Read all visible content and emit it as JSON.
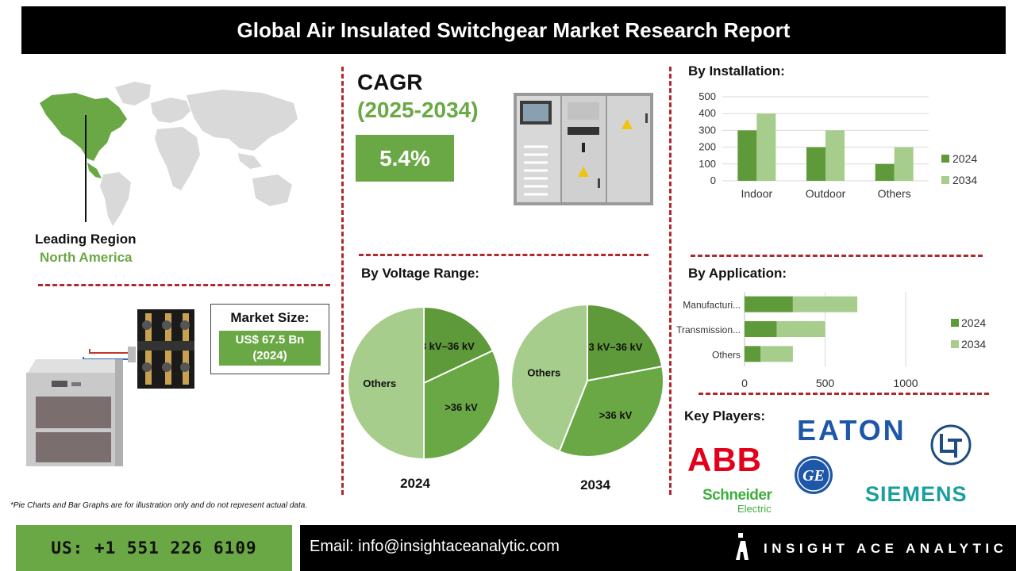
{
  "header": {
    "title": "Global Air Insulated Switchgear Market Research Report"
  },
  "region": {
    "label": "Leading Region",
    "value": "North America"
  },
  "cagr": {
    "title": "CAGR",
    "period": "(2025-2034)",
    "value": "5.4%"
  },
  "market_size": {
    "label": "Market Size:",
    "value": "US$ 67.5 Bn",
    "year": "(2024)"
  },
  "sections": {
    "installation": "By Installation:",
    "voltage": "By Voltage Range:",
    "application": "By Application:",
    "players": "Key Players:"
  },
  "note": "*Pie Charts and Bar Graphs are for illustration only and do not represent actual data.",
  "footer": {
    "phone": "US: +1 551 226 6109",
    "email": "Email: info@insightaceanalytic.com",
    "brand": "INSIGHT ACE ANALYTIC"
  },
  "players": {
    "abb": "ABB",
    "eaton": "EATON",
    "lt": "L&T",
    "ge": "GE",
    "schneider": "Schneider",
    "schneider_sub": "Electric",
    "siemens": "SIEMENS"
  },
  "colors": {
    "dark": "#5e9a3a",
    "light": "#a6cd8b",
    "mid": "#6aa845",
    "accent": "#b3282d"
  },
  "chart_data": [
    {
      "id": "installation",
      "type": "bar",
      "categories": [
        "Indoor",
        "Outdoor",
        "Others"
      ],
      "series": [
        {
          "name": "2024",
          "values": [
            300,
            200,
            100
          ]
        },
        {
          "name": "2034",
          "values": [
            400,
            300,
            200
          ]
        }
      ],
      "yticks": [
        "0",
        "100",
        "200",
        "300",
        "400",
        "500"
      ],
      "ylim": [
        0,
        500
      ],
      "legend": "right"
    },
    {
      "id": "application",
      "type": "bar",
      "orientation": "horizontal",
      "categories": [
        "Manufacturi...",
        "Transmission...",
        "Others"
      ],
      "series": [
        {
          "name": "2024",
          "values": [
            300,
            200,
            100
          ]
        },
        {
          "name": "2034",
          "values": [
            400,
            300,
            200
          ]
        }
      ],
      "xticks": [
        "0",
        "500",
        "1000"
      ],
      "xlim": [
        0,
        1000
      ],
      "legend": "right"
    },
    {
      "id": "voltage2024",
      "type": "pie",
      "label": "2024",
      "slices": [
        {
          "name": "3 kV–36 kV",
          "value": 18
        },
        {
          "name": ">36 kV",
          "value": 32
        },
        {
          "name": "Others",
          "value": 50
        }
      ]
    },
    {
      "id": "voltage2034",
      "type": "pie",
      "label": "2034",
      "slices": [
        {
          "name": "3 kV–36 kV",
          "value": 22
        },
        {
          "name": ">36 kV",
          "value": 34
        },
        {
          "name": "Others",
          "value": 44
        }
      ]
    }
  ]
}
